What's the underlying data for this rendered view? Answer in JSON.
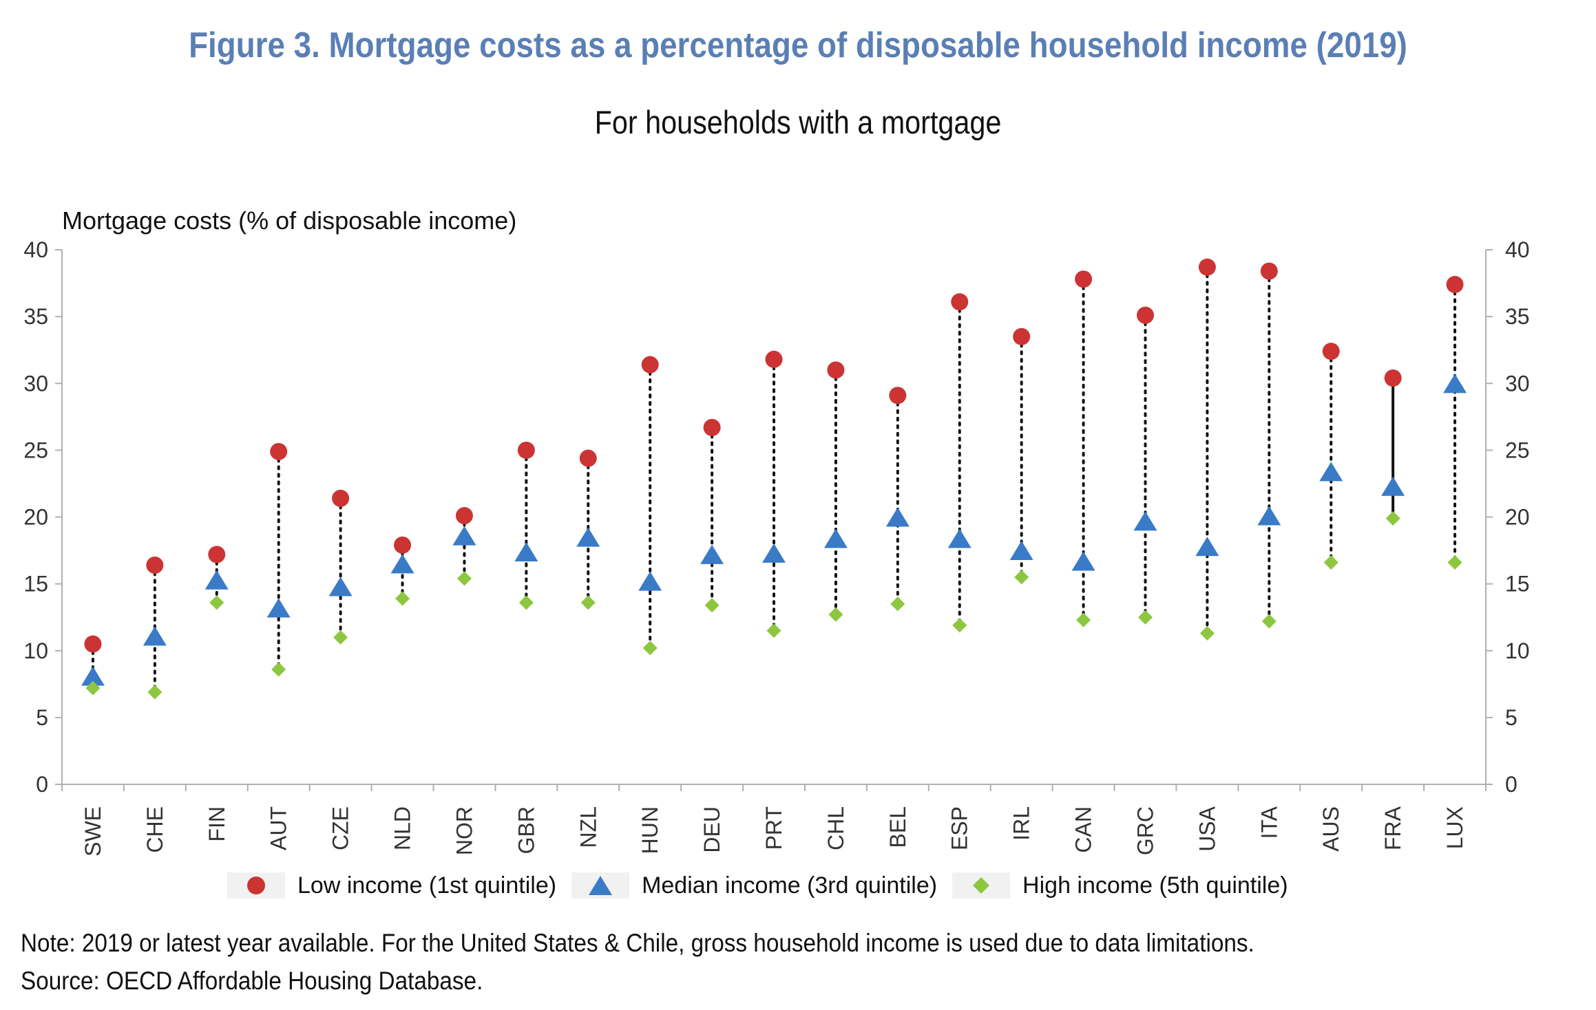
{
  "title": "Figure 3. Mortgage costs as a percentage of disposable household income (2019)",
  "subtitle": "For households with a mortgage",
  "note": "Note: 2019 or latest year available. For the United States & Chile, gross household income is used due to data limitations.",
  "source": "Source: OECD Affordable Housing Database.",
  "colors": {
    "title": "#5a7fb5",
    "low": "#cc3333",
    "median": "#3a7bc8",
    "high": "#8dc63f",
    "axis": "#b0b0b0",
    "connector": "#111111"
  },
  "legend": {
    "low_label": "Low income (1st quintile)",
    "median_label": "Median income (3rd quintile)",
    "high_label": "High income (5th quintile)"
  },
  "chart_data": {
    "type": "scatter",
    "title": "Figure 3. Mortgage costs as a percentage of disposable household income (2019)",
    "subtitle": "For households with a mortgage",
    "ylabel": "Mortgage costs (% of disposable income)",
    "xlabel": "",
    "ylim": [
      0,
      40
    ],
    "yticks": [
      0,
      5,
      10,
      15,
      20,
      25,
      30,
      35,
      40
    ],
    "secondary_y_axis": true,
    "legend_position": "bottom",
    "categories": [
      "SWE",
      "CHE",
      "FIN",
      "AUT",
      "CZE",
      "NLD",
      "NOR",
      "GBR",
      "NZL",
      "HUN",
      "DEU",
      "PRT",
      "CHL",
      "BEL",
      "ESP",
      "IRL",
      "CAN",
      "GRC",
      "USA",
      "ITA",
      "AUS",
      "FRA",
      "LUX"
    ],
    "series": [
      {
        "name": "Low income (1st quintile)",
        "marker": "circle",
        "values": [
          10.5,
          16.4,
          17.2,
          24.9,
          21.4,
          17.9,
          20.1,
          25.0,
          24.4,
          31.4,
          26.7,
          31.8,
          31.0,
          29.1,
          36.1,
          33.5,
          37.8,
          35.1,
          38.7,
          38.4,
          32.4,
          30.4,
          37.4
        ]
      },
      {
        "name": "Median income (3rd quintile)",
        "marker": "triangle",
        "values": [
          8.0,
          11.0,
          15.2,
          13.1,
          14.7,
          16.4,
          18.5,
          17.3,
          18.4,
          15.1,
          17.1,
          17.2,
          18.3,
          19.9,
          18.3,
          17.4,
          16.6,
          19.6,
          17.7,
          20.0,
          23.3,
          22.2,
          29.9
        ]
      },
      {
        "name": "High income (5th quintile)",
        "marker": "diamond",
        "values": [
          7.2,
          6.9,
          13.6,
          8.6,
          11.0,
          13.9,
          15.4,
          13.6,
          13.6,
          10.2,
          13.4,
          11.5,
          12.7,
          13.5,
          11.9,
          15.5,
          12.3,
          12.5,
          11.3,
          12.2,
          16.6,
          19.9,
          16.6
        ]
      }
    ],
    "connector_styles": [
      "dotted",
      "dotted",
      "dotted",
      "dotted",
      "dotted",
      "dotted",
      "dotted",
      "dotted",
      "dotted",
      "dotted",
      "dotted",
      "dotted",
      "dotted",
      "dotted",
      "dotted",
      "dotted",
      "dotted",
      "dotted",
      "dotted",
      "dotted",
      "dotted",
      "solid",
      "dotted"
    ]
  }
}
